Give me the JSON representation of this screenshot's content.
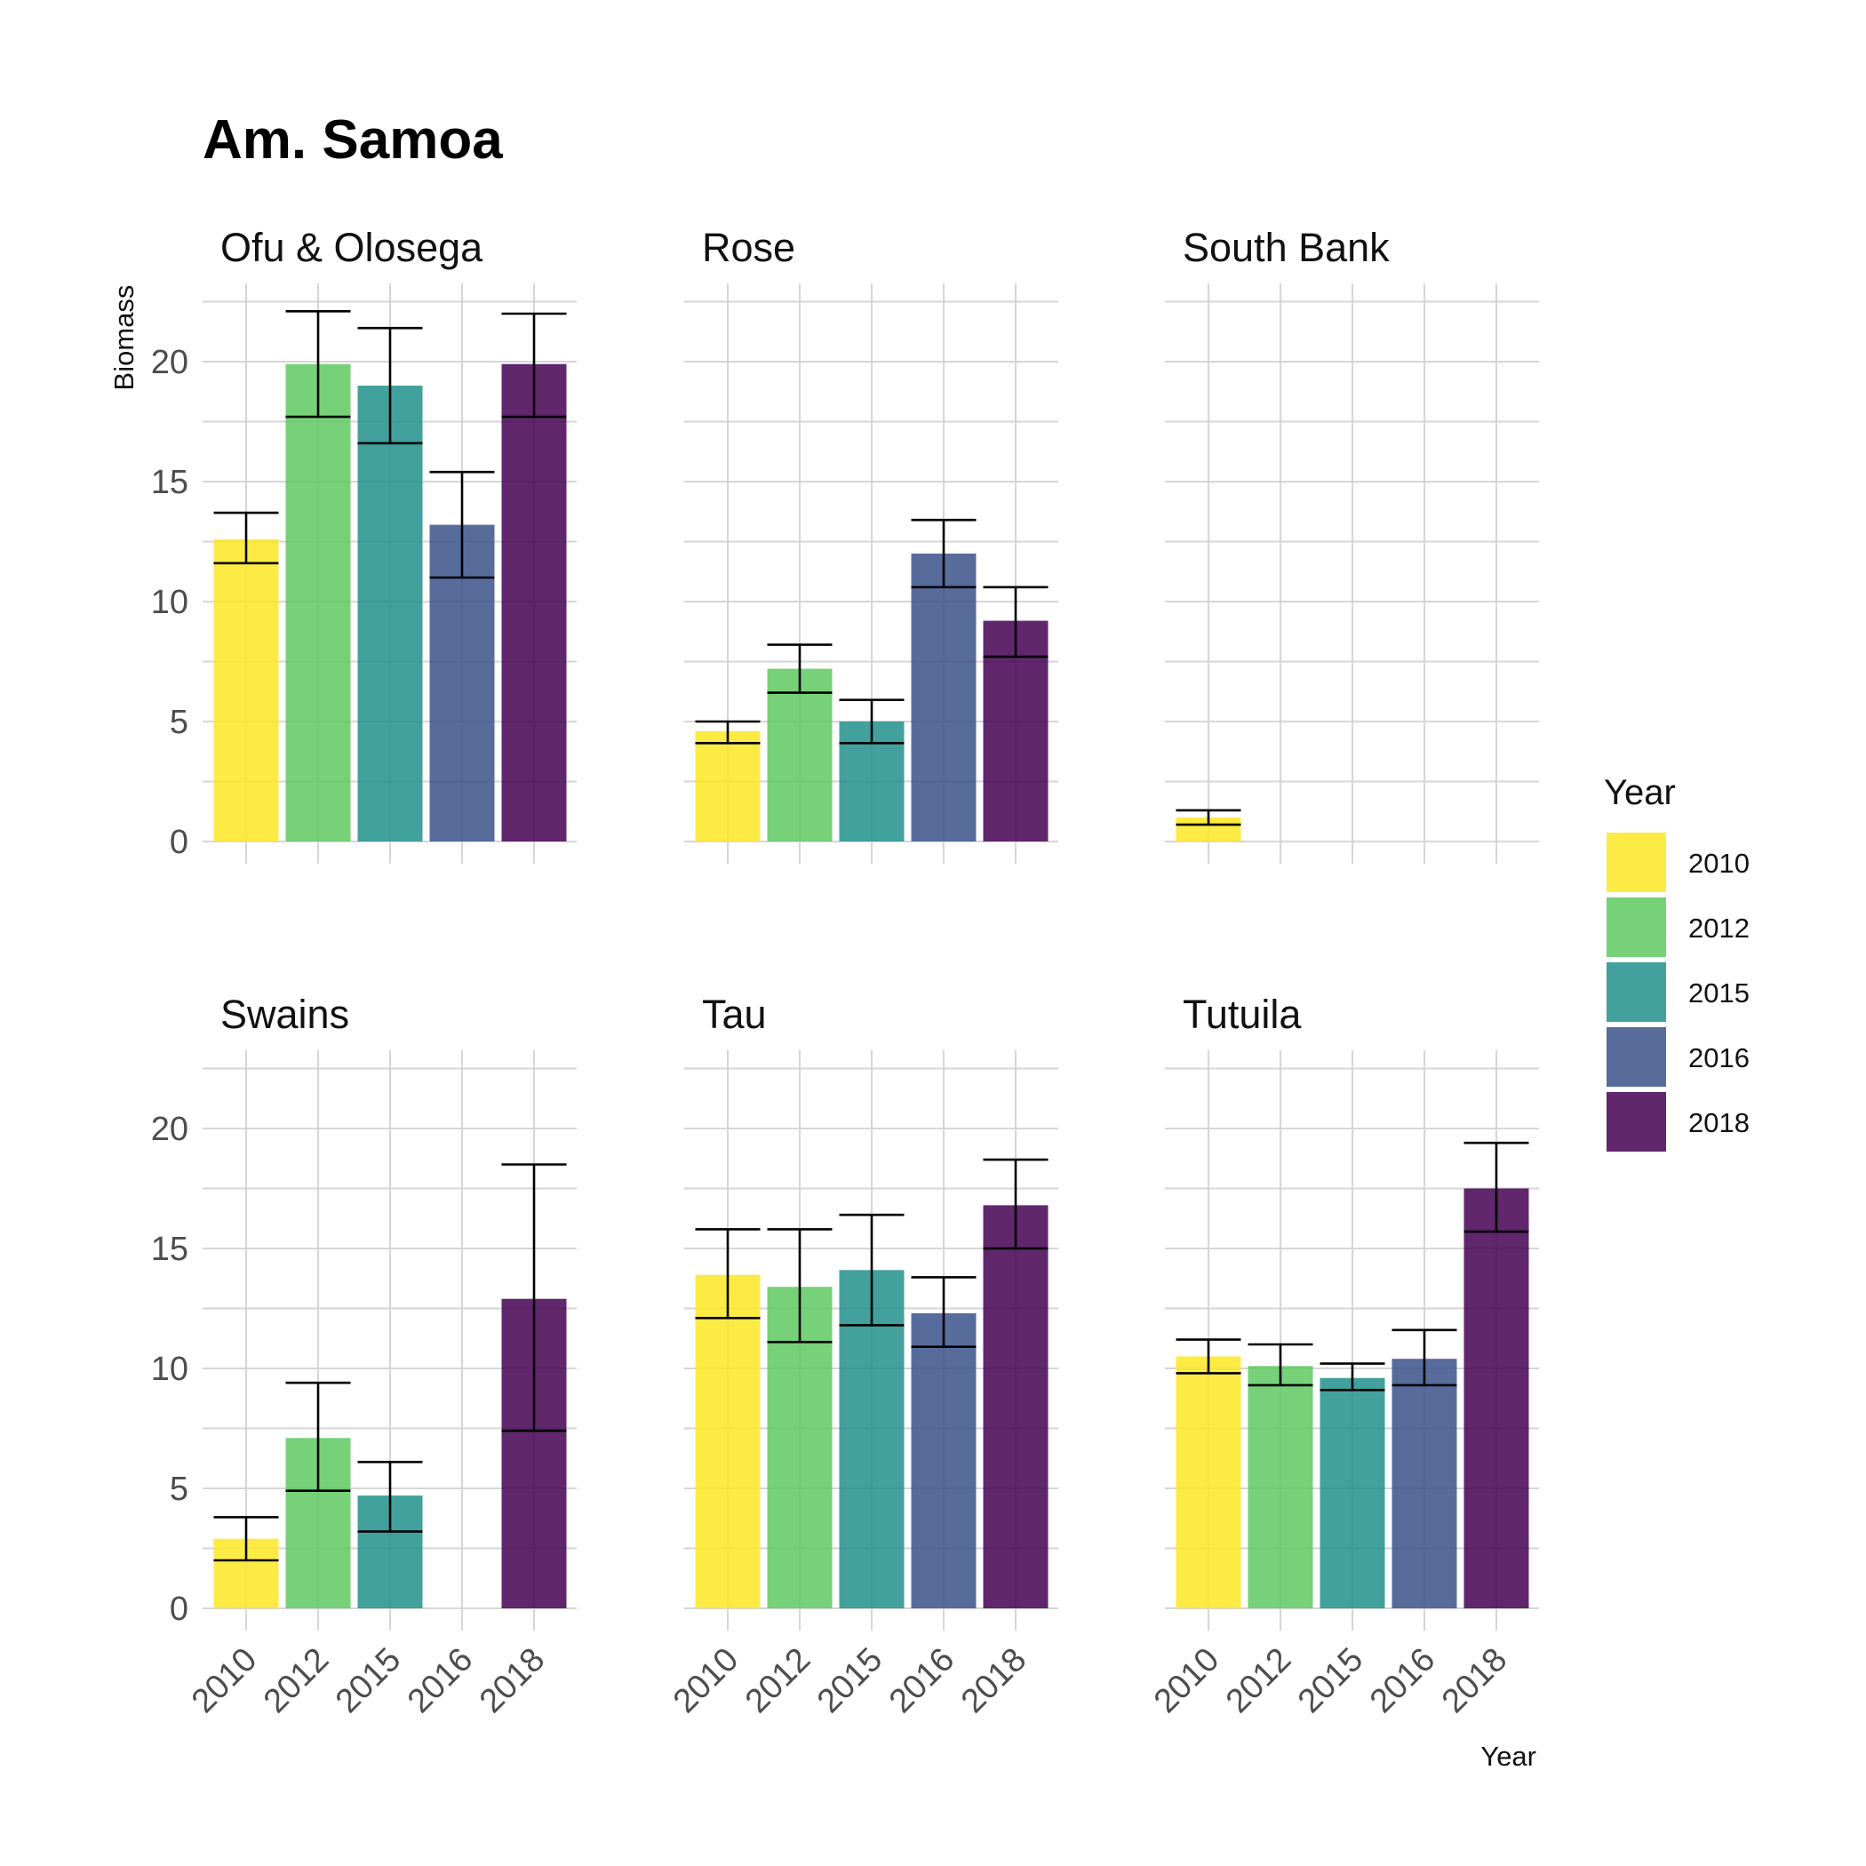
{
  "chart_data": {
    "type": "bar",
    "title": "Am. Samoa",
    "xlabel": "Year",
    "ylabel": "Biomass",
    "ylim": [
      0,
      23
    ],
    "y_ticks": [
      0,
      5,
      10,
      15,
      20
    ],
    "categories": [
      "2010",
      "2012",
      "2015",
      "2016",
      "2018"
    ],
    "grid": true,
    "legend": {
      "title": "Year",
      "position": "right",
      "entries": [
        "2010",
        "2012",
        "2015",
        "2016",
        "2018"
      ]
    },
    "colors": [
      "#FDE725",
      "#5EC962",
      "#21908C",
      "#3B528B",
      "#440154"
    ],
    "panels": [
      {
        "name": "Ofu & Olosega",
        "values": [
          12.6,
          19.9,
          19.0,
          13.2,
          19.9
        ],
        "err_low": [
          11.6,
          17.7,
          16.6,
          11.0,
          17.7
        ],
        "err_high": [
          13.7,
          22.1,
          21.4,
          15.4,
          22.0
        ]
      },
      {
        "name": "Rose",
        "values": [
          4.6,
          7.2,
          5.0,
          12.0,
          9.2
        ],
        "err_low": [
          4.1,
          6.2,
          4.1,
          10.6,
          7.7
        ],
        "err_high": [
          5.0,
          8.2,
          5.9,
          13.4,
          10.6
        ]
      },
      {
        "name": "South Bank",
        "values": [
          1.0,
          null,
          null,
          null,
          null
        ],
        "err_low": [
          0.7,
          null,
          null,
          null,
          null
        ],
        "err_high": [
          1.3,
          null,
          null,
          null,
          null
        ]
      },
      {
        "name": "Swains",
        "values": [
          2.9,
          7.1,
          4.7,
          null,
          12.9
        ],
        "err_low": [
          2.0,
          4.9,
          3.2,
          null,
          7.4
        ],
        "err_high": [
          3.8,
          9.4,
          6.1,
          null,
          18.5
        ]
      },
      {
        "name": "Tau",
        "values": [
          13.9,
          13.4,
          14.1,
          12.3,
          16.8
        ],
        "err_low": [
          12.1,
          11.1,
          11.8,
          10.9,
          15.0
        ],
        "err_high": [
          15.8,
          15.8,
          16.4,
          13.8,
          18.7
        ]
      },
      {
        "name": "Tutuila",
        "values": [
          10.5,
          10.1,
          9.6,
          10.4,
          17.5
        ],
        "err_low": [
          9.8,
          9.3,
          9.1,
          9.3,
          15.7
        ],
        "err_high": [
          11.2,
          11.0,
          10.2,
          11.6,
          19.4
        ]
      }
    ]
  }
}
